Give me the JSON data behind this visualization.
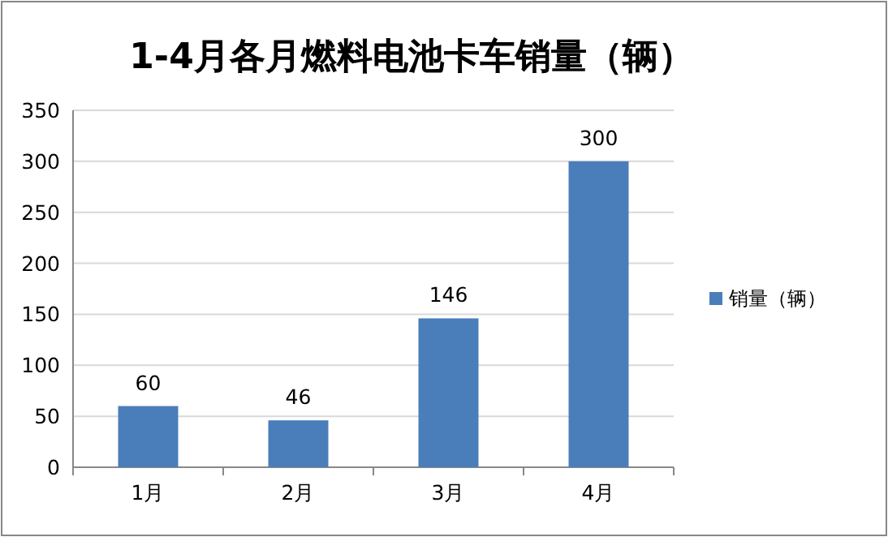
{
  "chart_data": {
    "type": "bar",
    "title": "1-4月各月燃料电池卡车销量（辆）",
    "categories": [
      "1月",
      "2月",
      "3月",
      "4月"
    ],
    "series": [
      {
        "name": "销量（辆）",
        "color": "#4a7ebb",
        "values": [
          60,
          46,
          146,
          300
        ]
      }
    ],
    "ylim": [
      0,
      350
    ],
    "yticks": [
      0,
      50,
      100,
      150,
      200,
      250,
      300,
      350
    ],
    "grid": "y",
    "legend": "right",
    "data_labels": true
  }
}
